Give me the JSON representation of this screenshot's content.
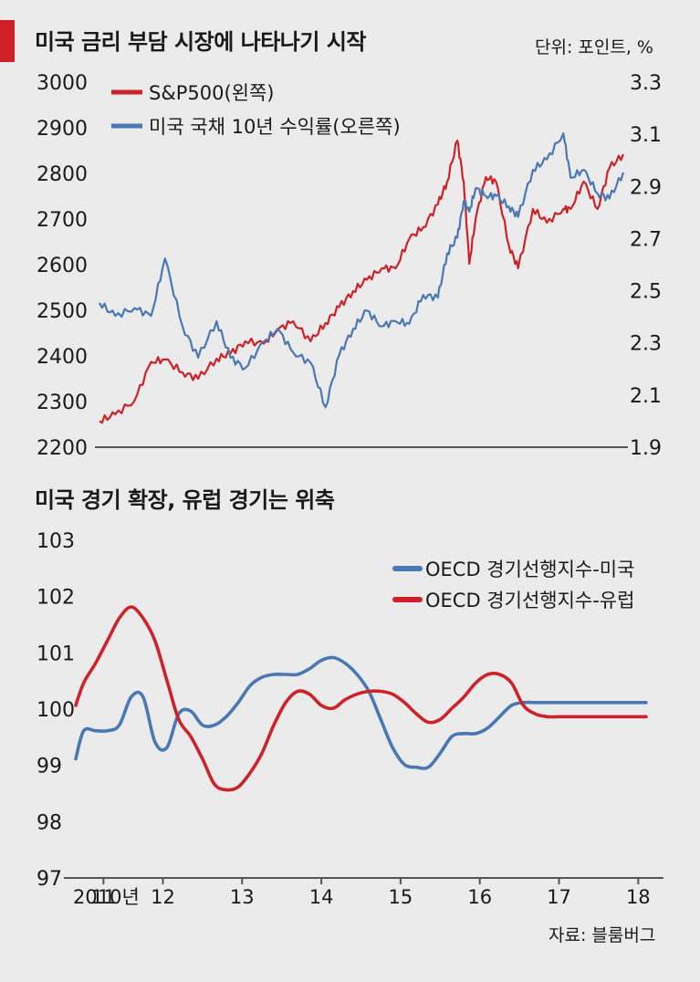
{
  "colors": {
    "red": "#cc2229",
    "blue": "#4a78b3",
    "axis": "#555555",
    "accent": "#d11f27"
  },
  "top": {
    "title": "미국 금리 부담 시장에 나타나기 시작",
    "unit": "단위: 포인트, %",
    "legend": [
      "S&P500(왼쪽)",
      "미국 국채 10년 수익률(오른쪽)"
    ]
  },
  "bottom": {
    "title": "미국 경기 확장, 유럽 경기는 위축",
    "legend": [
      "OECD 경기선행지수-미국",
      "OECD 경기선행지수-유럽"
    ]
  },
  "source": "자료: 블룸버그",
  "chart_data": [
    {
      "type": "line",
      "title": "미국 금리 부담 시장에 나타나기 시작",
      "x": [
        "2017-01-03",
        "2017-01-20",
        "2017-02-10",
        "2017-02-28",
        "2017-03-15",
        "2017-04-03",
        "2017-04-20",
        "2017-05-10",
        "2017-05-25",
        "2017-06-10",
        "2017-06-30",
        "2017-07-15",
        "2017-08-01",
        "2017-08-20",
        "2017-09-05",
        "2017-09-20",
        "2017-10-05",
        "2017-10-20",
        "2017-11-05",
        "2017-11-20",
        "2017-12-05",
        "2017-12-20",
        "2018-01-05",
        "2018-01-15",
        "2018-01-26",
        "2018-02-02",
        "2018-02-08",
        "2018-02-15",
        "2018-02-26",
        "2018-03-09",
        "2018-03-23",
        "2018-04-02",
        "2018-04-18",
        "2018-05-03",
        "2018-05-21",
        "2018-05-29",
        "2018-06-12",
        "2018-06-27",
        "2018-07-10",
        "2018-07-25"
      ],
      "yticks_left": [
        3000,
        2900,
        2800,
        2700,
        2600,
        2500,
        2400,
        2300,
        2200
      ],
      "yticks_right": [
        "3.3",
        "3.1",
        "2.9",
        "2.7",
        "2.5",
        "2.3",
        "2.1",
        "1.9"
      ],
      "ylim_left": [
        2200,
        3000
      ],
      "ylim_right": [
        1.9,
        3.3
      ],
      "series": [
        {
          "name": "S&P500(왼쪽)",
          "axis": "left",
          "color": "#cc2229",
          "values": [
            2255,
            2270,
            2300,
            2385,
            2390,
            2362,
            2348,
            2392,
            2403,
            2430,
            2425,
            2455,
            2474,
            2430,
            2470,
            2505,
            2540,
            2565,
            2590,
            2590,
            2655,
            2680,
            2730,
            2780,
            2870,
            2780,
            2600,
            2700,
            2790,
            2780,
            2640,
            2590,
            2720,
            2690,
            2720,
            2720,
            2780,
            2720,
            2810,
            2840
          ]
        },
        {
          "name": "미국 국채 10년 수익률(오른쪽)",
          "axis": "right",
          "color": "#4a78b3",
          "values": [
            2.45,
            2.4,
            2.43,
            2.4,
            2.62,
            2.36,
            2.24,
            2.38,
            2.24,
            2.2,
            2.3,
            2.35,
            2.26,
            2.22,
            2.05,
            2.25,
            2.35,
            2.42,
            2.36,
            2.38,
            2.37,
            2.48,
            2.47,
            2.64,
            2.7,
            2.84,
            2.8,
            2.89,
            2.86,
            2.86,
            2.82,
            2.78,
            2.96,
            3.0,
            3.1,
            2.93,
            2.96,
            2.87,
            2.85,
            2.95
          ]
        }
      ]
    },
    {
      "type": "line",
      "title": "미국 경기 확장, 유럽 경기는 위축",
      "xticks": [
        "2010년",
        "11",
        "12",
        "13",
        "14",
        "15",
        "16",
        "17",
        "18"
      ],
      "yticks": [
        103,
        102,
        101,
        100,
        99,
        98,
        97
      ],
      "ylim": [
        97,
        103
      ],
      "x": [
        2010.9,
        2011.0,
        2011.15,
        2011.3,
        2011.45,
        2011.6,
        2011.75,
        2011.9,
        2012.05,
        2012.2,
        2012.35,
        2012.5,
        2012.65,
        2012.8,
        2012.95,
        2013.1,
        2013.25,
        2013.4,
        2013.55,
        2013.7,
        2013.85,
        2014.0,
        2014.15,
        2014.3,
        2014.45,
        2014.6,
        2014.75,
        2014.9,
        2015.05,
        2015.2,
        2015.35,
        2015.5,
        2015.65,
        2015.8,
        2015.95,
        2016.1,
        2016.25,
        2016.4,
        2016.55,
        2016.7,
        2016.85,
        2017.0,
        2017.15,
        2017.3,
        2017.45,
        2017.6,
        2017.75,
        2017.9,
        2018.05,
        2018.1
      ],
      "series": [
        {
          "name": "OECD 경기선행지수-미국",
          "color": "#4a78b3",
          "values": [
            99.1,
            99.6,
            99.6,
            99.6,
            99.7,
            100.2,
            100.2,
            99.4,
            99.3,
            99.9,
            99.95,
            99.7,
            99.7,
            99.85,
            100.1,
            100.4,
            100.55,
            100.6,
            100.6,
            100.6,
            100.7,
            100.85,
            100.9,
            100.8,
            100.6,
            100.3,
            99.8,
            99.3,
            99.0,
            98.95,
            98.95,
            99.2,
            99.5,
            99.55,
            99.55,
            99.65,
            99.85,
            100.05,
            100.1,
            100.1,
            100.1,
            100.1,
            100.1,
            100.1,
            100.1,
            100.1,
            100.1,
            100.1,
            100.1,
            100.1
          ]
        },
        {
          "name": "OECD 경기선행지수-유럽",
          "color": "#cc2229",
          "values": [
            100.05,
            100.45,
            100.8,
            101.2,
            101.6,
            101.8,
            101.6,
            101.2,
            100.5,
            99.8,
            99.5,
            99.1,
            98.65,
            98.55,
            98.6,
            98.85,
            99.2,
            99.7,
            100.1,
            100.3,
            100.25,
            100.05,
            100.0,
            100.15,
            100.25,
            100.3,
            100.3,
            100.25,
            100.1,
            99.9,
            99.75,
            99.8,
            100.0,
            100.2,
            100.45,
            100.6,
            100.6,
            100.45,
            100.05,
            99.9,
            99.85,
            99.85,
            99.85,
            99.85,
            99.85,
            99.85,
            99.85,
            99.85,
            99.85,
            99.85
          ]
        }
      ]
    }
  ]
}
